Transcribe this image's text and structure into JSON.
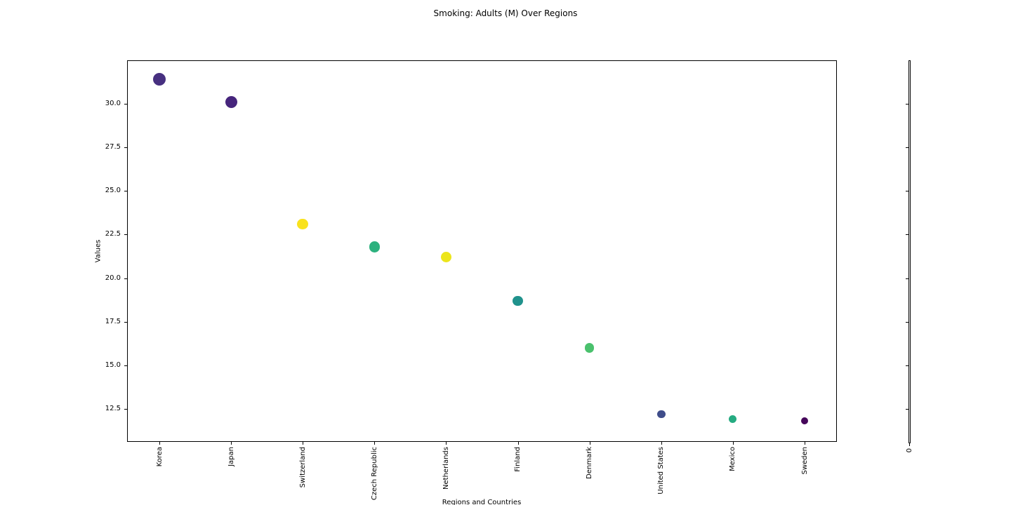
{
  "figure": {
    "title": "Smoking: Adults (M) Over Regions",
    "background_color": "#ffffff",
    "axis_color": "#000000"
  },
  "chart_data": {
    "type": "scatter",
    "title": "Smoking: Adults (M) Over Regions",
    "xlabel": "Regions and Countries",
    "ylabel": "Values",
    "categories": [
      "Korea",
      "Japan",
      "Switzerland",
      "Czech Republic",
      "Netherlands",
      "Finland",
      "Denmark",
      "United States",
      "Mexico",
      "Sweden"
    ],
    "values": [
      31.4,
      30.1,
      23.1,
      21.8,
      21.2,
      18.7,
      16.0,
      12.2,
      11.9,
      11.8
    ],
    "point_colors": [
      "#473080",
      "#46257c",
      "#f9e21d",
      "#2cb17e",
      "#ece51b",
      "#20928c",
      "#4ac16d",
      "#3f4d8a",
      "#25ab81",
      "#45065a"
    ],
    "point_sizes": [
      18,
      17,
      15.5,
      15.5,
      15,
      14.5,
      13.5,
      11.5,
      11,
      10.5
    ],
    "ytick_labels": [
      "12.5",
      "15.0",
      "17.5",
      "20.0",
      "22.5",
      "25.0",
      "27.5",
      "30.0"
    ],
    "ytick_values": [
      12.5,
      15.0,
      17.5,
      20.0,
      22.5,
      25.0,
      27.5,
      30.0
    ],
    "ylim": [
      10.6,
      32.5
    ],
    "x_tick_rotation": 90,
    "grid": false,
    "legend": "none",
    "marker": "circle"
  },
  "secondary_axis": {
    "xtick_label": "0",
    "ytick_values": [
      12.5,
      15.0,
      17.5,
      20.0,
      22.5,
      25.0,
      27.5,
      30.0
    ]
  }
}
